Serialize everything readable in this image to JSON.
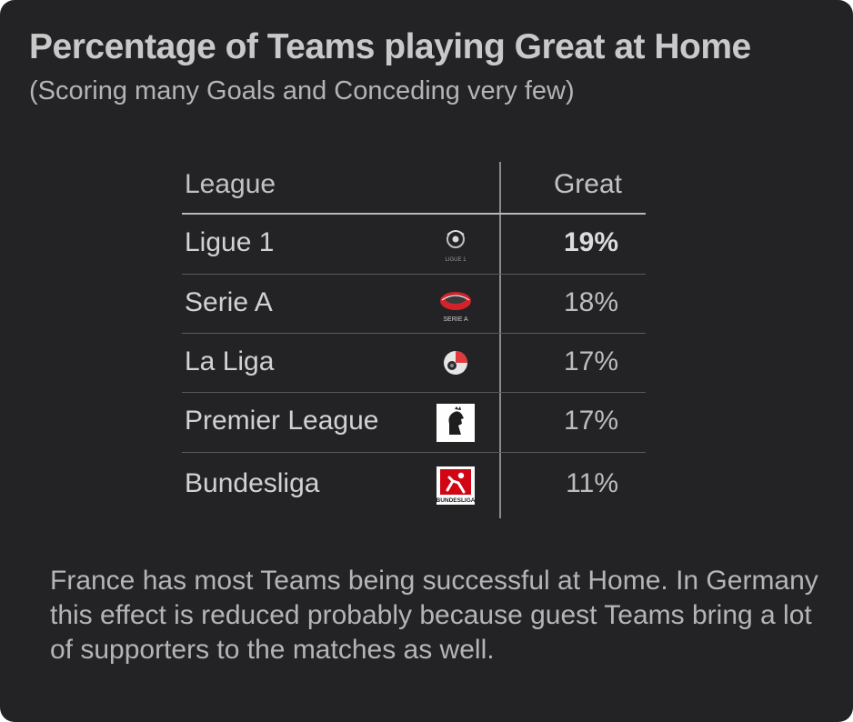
{
  "title": "Percentage of Teams playing Great at Home",
  "subtitle": "(Scoring many Goals and Conceding very few)",
  "chart_data": {
    "type": "table",
    "columns": [
      "League",
      "Great"
    ],
    "rows": [
      {
        "league": "Ligue 1",
        "great": "19%",
        "value": 19,
        "highlight": true,
        "logo": "ligue-1-logo",
        "logo_text": "LIGUE 1"
      },
      {
        "league": "Serie A",
        "great": "18%",
        "value": 18,
        "highlight": false,
        "logo": "serie-a-logo",
        "logo_text": "SERIE A"
      },
      {
        "league": "La Liga",
        "great": "17%",
        "value": 17,
        "highlight": false,
        "logo": "la-liga-logo",
        "logo_text": ""
      },
      {
        "league": "Premier League",
        "great": "17%",
        "value": 17,
        "highlight": false,
        "logo": "premier-league-logo",
        "logo_text": ""
      },
      {
        "league": "Bundesliga",
        "great": "11%",
        "value": 11,
        "highlight": false,
        "logo": "bundesliga-logo",
        "logo_text": "BUNDESLIGA"
      }
    ]
  },
  "note": "France has most Teams being successful at Home. In Germany this effect is reduced probably because guest Teams bring a lot of supporters to the matches as well.",
  "colors": {
    "background": "#232326",
    "text": "#c9c9c9",
    "divider": "#8a8a8a",
    "serie_a_red": "#d2232a",
    "bundesliga_red": "#d20515",
    "la_liga_red": "#e03a3e"
  }
}
